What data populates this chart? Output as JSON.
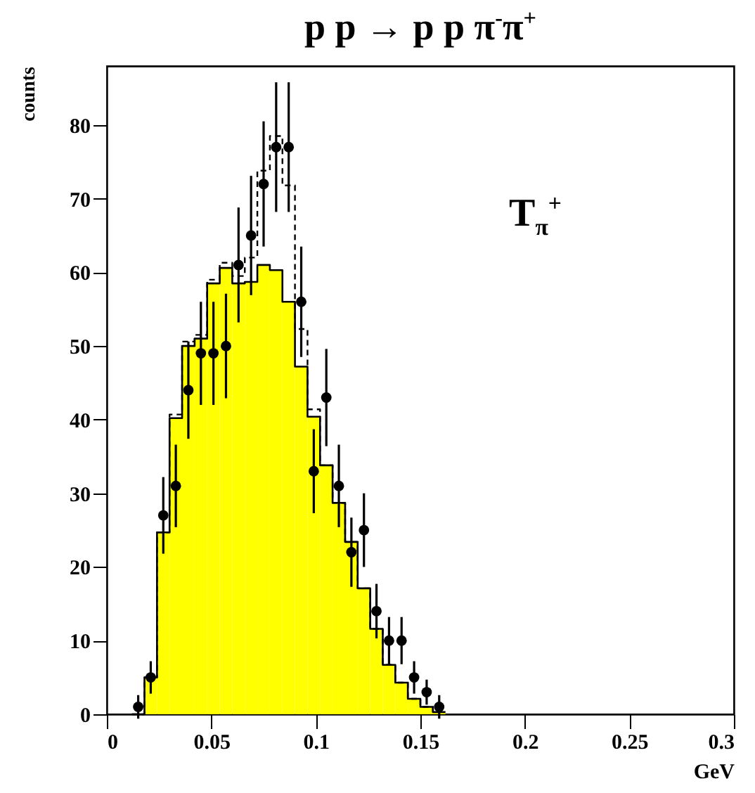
{
  "chart_data": {
    "type": "histogram",
    "title": "p p → p p π$^{-}$π$^{+}$",
    "xlabel": "GeV",
    "ylabel": "counts",
    "annotations": [
      "T$_{π}$$^{+}$"
    ],
    "bins": [
      0.012,
      0.018,
      0.024,
      0.03,
      0.036,
      0.042,
      0.048,
      0.054,
      0.06,
      0.066,
      0.072,
      0.078,
      0.084,
      0.09,
      0.096,
      0.102,
      0.108,
      0.114,
      0.12,
      0.126,
      0.132,
      0.138,
      0.144,
      0.15,
      0.156,
      0.162
    ],
    "series": [
      {
        "type": "histogram",
        "color": "#ffff00",
        "values": [
          0,
          5,
          24.7,
          40.2,
          50,
          51,
          58.5,
          60.6,
          58.5,
          58.7,
          61,
          60.3,
          56,
          47.2,
          40.4,
          33.8,
          28.7,
          23.4,
          17.1,
          11.6,
          6.7,
          4.3,
          2.1,
          1,
          0.3
        ]
      },
      {
        "type": "histogram",
        "color": "#000000",
        "line_style": "dashed",
        "values": [
          0,
          5,
          24.7,
          40.7,
          50.6,
          51.5,
          59,
          61.3,
          59.5,
          62,
          73.8,
          78.5,
          71.8,
          52.3,
          41.4,
          33.8,
          28.7,
          23.4,
          17.1,
          11.6,
          6.7,
          4.3,
          2.1,
          1,
          0.3
        ]
      },
      {
        "type": "scatter",
        "color": "#000000",
        "marker": "circle",
        "x": [
          0.015,
          0.021,
          0.027,
          0.033,
          0.039,
          0.045,
          0.051,
          0.057,
          0.063,
          0.069,
          0.075,
          0.081,
          0.087,
          0.093,
          0.099,
          0.105,
          0.111,
          0.117,
          0.123,
          0.129,
          0.135,
          0.141,
          0.147,
          0.153,
          0.159
        ],
        "values": [
          1,
          5,
          27,
          31,
          44,
          49,
          49,
          50,
          61,
          65,
          72,
          77,
          77,
          56,
          33,
          43,
          31,
          22,
          25,
          14,
          10,
          10,
          5,
          3,
          1
        ],
        "errors": [
          1.6,
          2.2,
          5.2,
          5.6,
          6.6,
          7,
          7,
          7.1,
          7.8,
          8.1,
          8.5,
          8.8,
          8.8,
          7.5,
          5.7,
          6.6,
          5.6,
          4.7,
          5,
          3.7,
          3.2,
          3.2,
          2.2,
          1.7,
          1.6
        ]
      }
    ],
    "xlim": [
      0,
      0.3
    ],
    "xticks": [
      0,
      0.05,
      0.1,
      0.15,
      0.2,
      0.25,
      0.3
    ],
    "ylim": [
      0,
      88
    ],
    "yticks": [
      0,
      10,
      20,
      30,
      40,
      50,
      60,
      70,
      80
    ],
    "grid": false
  }
}
